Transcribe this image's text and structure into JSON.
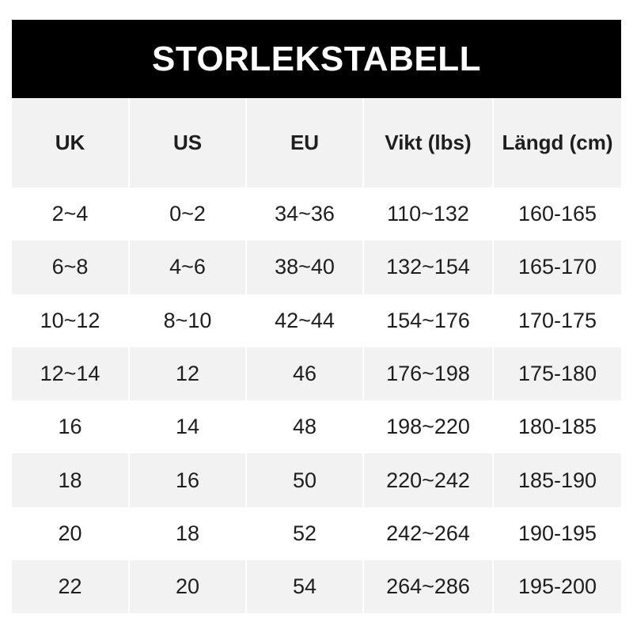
{
  "title": "STORLEKSTABELL",
  "columns": [
    "UK",
    "US",
    "EU",
    "Vikt (lbs)",
    "Längd (cm)"
  ],
  "rows": [
    [
      "2~4",
      "0~2",
      "34~36",
      "110~132",
      "160-165"
    ],
    [
      "6~8",
      "4~6",
      "38~40",
      "132~154",
      "165-170"
    ],
    [
      "10~12",
      "8~10",
      "42~44",
      "154~176",
      "170-175"
    ],
    [
      "12~14",
      "12",
      "46",
      "176~198",
      "175-180"
    ],
    [
      "16",
      "14",
      "48",
      "198~220",
      "180-185"
    ],
    [
      "18",
      "16",
      "50",
      "220~242",
      "185-190"
    ],
    [
      "20",
      "18",
      "52",
      "242~264",
      "190-195"
    ],
    [
      "22",
      "20",
      "54",
      "264~286",
      "195-200"
    ]
  ],
  "colors": {
    "header_bg": "#000000",
    "header_text": "#ffffff",
    "stripe": "#f2f2f2"
  }
}
